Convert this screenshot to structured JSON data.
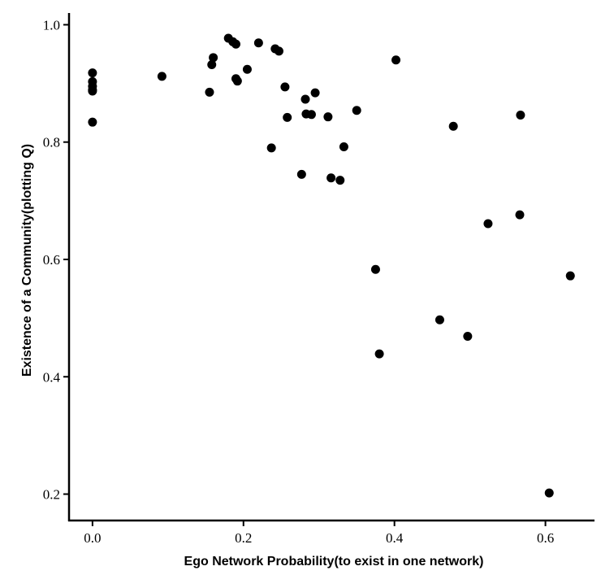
{
  "chart_data": {
    "type": "scatter",
    "title": "",
    "xlabel": "Ego Network Probability(to exist in one network)",
    "ylabel": "Existence of a Community(plotting Q)",
    "xlim": [
      -0.03,
      0.665
    ],
    "ylim": [
      0.155,
      1.02
    ],
    "xticks": [
      0.0,
      0.2,
      0.4,
      0.6
    ],
    "xtick_labels": [
      "0.0",
      "0.2",
      "0.4",
      "0.6"
    ],
    "yticks": [
      0.2,
      0.4,
      0.6,
      0.8,
      1.0
    ],
    "ytick_labels": [
      "0.2",
      "0.4",
      "0.6",
      "0.8",
      "1.0"
    ],
    "grid": false,
    "legend": "none",
    "point_color": "#000000",
    "series": [
      {
        "x": [
          0.0,
          0.0,
          0.0,
          0.0,
          0.0,
          0.0,
          0.092,
          0.155,
          0.158,
          0.16,
          0.18,
          0.186,
          0.19,
          0.19,
          0.192,
          0.205,
          0.22,
          0.237,
          0.242,
          0.247,
          0.255,
          0.258,
          0.277,
          0.282,
          0.283,
          0.29,
          0.295,
          0.312,
          0.316,
          0.328,
          0.333,
          0.35,
          0.375,
          0.38,
          0.402,
          0.46,
          0.478,
          0.497,
          0.524,
          0.566,
          0.567,
          0.605,
          0.633
        ],
        "y": [
          0.918,
          0.903,
          0.895,
          0.889,
          0.887,
          0.834,
          0.912,
          0.885,
          0.932,
          0.944,
          0.977,
          0.971,
          0.967,
          0.908,
          0.904,
          0.924,
          0.969,
          0.79,
          0.959,
          0.955,
          0.894,
          0.842,
          0.745,
          0.873,
          0.848,
          0.847,
          0.884,
          0.843,
          0.739,
          0.735,
          0.792,
          0.854,
          0.583,
          0.439,
          0.94,
          0.497,
          0.827,
          0.469,
          0.661,
          0.676,
          0.846,
          0.202,
          0.572
        ]
      }
    ]
  }
}
